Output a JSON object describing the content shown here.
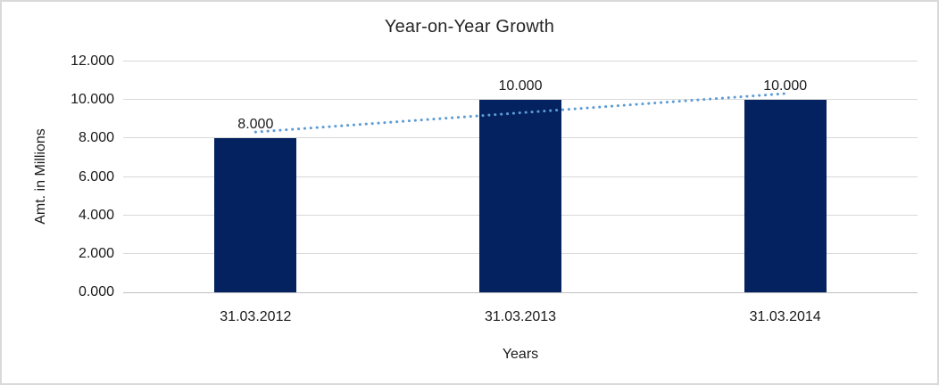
{
  "chart_data": {
    "type": "bar",
    "title": "Year-on-Year Growth",
    "xlabel": "Years",
    "ylabel": "Amt. in Millions",
    "categories": [
      "31.03.2012",
      "31.03.2013",
      "31.03.2014"
    ],
    "values": [
      8000,
      10000,
      10000
    ],
    "value_labels": [
      "8.000",
      "10.000",
      "10.000"
    ],
    "ytick_values": [
      0,
      2000,
      4000,
      6000,
      8000,
      10000,
      12000
    ],
    "ytick_labels": [
      "0.000",
      "2.000",
      "4.000",
      "6.000",
      "8.000",
      "10.000",
      "12.000"
    ],
    "ylim": [
      0,
      12000
    ],
    "grid": "horizontal",
    "legend": "none",
    "bar_color": "#04225f",
    "gridline_color": "#d9d9d9",
    "axis_line_color": "#bfbfbf",
    "border_color": "#d9d9d9",
    "trendline": {
      "type": "linear",
      "style": "dotted",
      "color": "#5b9bd5",
      "start_value": 8333,
      "end_value": 10333
    }
  }
}
